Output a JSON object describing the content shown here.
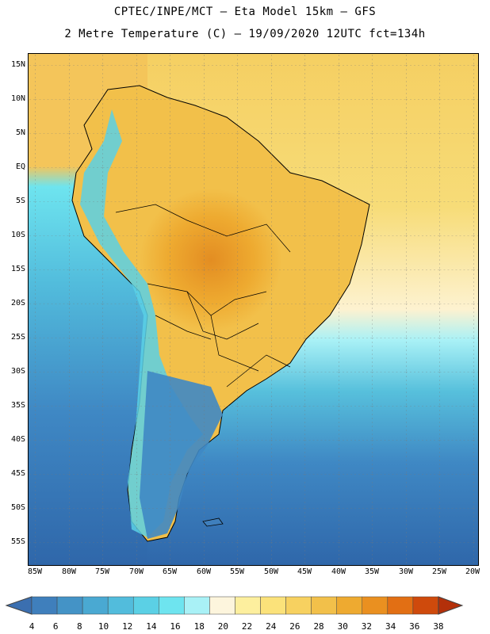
{
  "title_line1": "CPTEC/INPE/MCT –  Eta Model 15km – GFS",
  "title_line2": "2 Metre Temperature (C) – 19/09/2020 12UTC fct=134h",
  "lat_labels": [
    "15N",
    "10N",
    "5N",
    "EQ",
    "5S",
    "10S",
    "15S",
    "20S",
    "25S",
    "30S",
    "35S",
    "40S",
    "45S",
    "50S",
    "55S"
  ],
  "lon_labels": [
    "85W",
    "80W",
    "75W",
    "70W",
    "65W",
    "60W",
    "55W",
    "50W",
    "45W",
    "40W",
    "35W",
    "30W",
    "25W",
    "20W"
  ],
  "colorbar": {
    "values": [
      "4",
      "6",
      "8",
      "10",
      "12",
      "14",
      "16",
      "18",
      "20",
      "22",
      "24",
      "26",
      "28",
      "30",
      "32",
      "34",
      "36",
      "38"
    ],
    "colors": [
      "#3b6fb0",
      "#3f7fbc",
      "#4493c6",
      "#4aa9d2",
      "#52bcdc",
      "#5bd0e5",
      "#6ee4ef",
      "#a9f1f6",
      "#fdf5dd",
      "#fdef9e",
      "#fbe27a",
      "#f7d160",
      "#f2c04a",
      "#eeaa30",
      "#ea9020",
      "#e26f14",
      "#cf4a0c",
      "#b3300a"
    ]
  },
  "map": {
    "ocean_cold": "#2f67aa",
    "ocean_mid": "#3f88c4",
    "ocean_warm": "#57c0dc",
    "tropics": "#f4c55a",
    "continent_hot": "#e8a030"
  }
}
